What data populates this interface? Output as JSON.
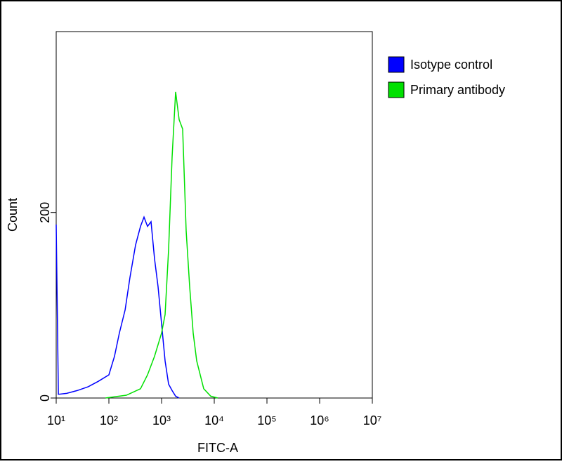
{
  "chart_data": {
    "type": "line",
    "x_label": "FITC-A",
    "y_label": "Count",
    "x_scale": "log",
    "xlim": [
      10,
      10000000
    ],
    "xticks": [
      {
        "value": 10,
        "label": "10¹"
      },
      {
        "value": 100,
        "label": "10²"
      },
      {
        "value": 1000,
        "label": "10³"
      },
      {
        "value": 10000,
        "label": "10⁴"
      },
      {
        "value": 100000,
        "label": "10⁵"
      },
      {
        "value": 1000000,
        "label": "10⁶"
      },
      {
        "value": 10000000,
        "label": "10⁷"
      }
    ],
    "ylim": [
      0,
      395
    ],
    "yticks": [
      0,
      200
    ],
    "legend": "upper right",
    "series": [
      {
        "name": "Isotype control",
        "color": "#0000ff",
        "x": [
          10,
          11,
          15.8,
          25,
          40,
          63,
          100,
          128,
          158,
          203,
          251,
          321,
          398,
          464,
          541,
          631,
          736,
          858,
          1000,
          1166,
          1359,
          1585,
          1848,
          2154
        ],
        "values": [
          187,
          4,
          5,
          8,
          12,
          18,
          25,
          45,
          70,
          95,
          130,
          165,
          185,
          195,
          185,
          190,
          150,
          120,
          80,
          40,
          15,
          8,
          2,
          0
        ]
      },
      {
        "name": "Primary antibody",
        "color": "#00e000",
        "x": [
          86,
          215,
          398,
          541,
          736,
          1000,
          1166,
          1359,
          1585,
          1848,
          2154,
          2512,
          2929,
          3415,
          3981,
          4642,
          6310,
          8577,
          11659
        ],
        "values": [
          0,
          3,
          10,
          25,
          45,
          70,
          90,
          160,
          260,
          330,
          300,
          290,
          180,
          120,
          70,
          40,
          10,
          2,
          0
        ]
      }
    ]
  }
}
